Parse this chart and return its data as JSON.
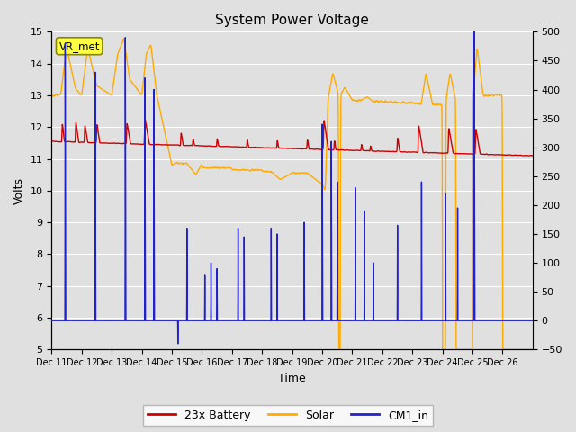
{
  "title": "System Power Voltage",
  "xlabel": "Time",
  "ylabel_left": "Volts",
  "ylim_left": [
    5.0,
    15.0
  ],
  "ylim_right": [
    -50,
    500
  ],
  "yticks_left": [
    5.0,
    6.0,
    7.0,
    8.0,
    9.0,
    10.0,
    11.0,
    12.0,
    13.0,
    14.0,
    15.0
  ],
  "yticks_right": [
    -50,
    0,
    50,
    100,
    150,
    200,
    250,
    300,
    350,
    400,
    450,
    500
  ],
  "xtick_labels": [
    "Dec 11",
    "Dec 12",
    "Dec 13",
    "Dec 14",
    "Dec 15",
    "Dec 16",
    "Dec 17",
    "Dec 18",
    "Dec 19",
    "Dec 20",
    "Dec 21",
    "Dec 22",
    "Dec 23",
    "Dec 24",
    "Dec 25",
    "Dec 26"
  ],
  "bg_color": "#e0e0e0",
  "grid_color": "#ffffff",
  "legend_labels": [
    "23x Battery",
    "Solar",
    "CM1_in"
  ],
  "battery_color": "#cc0000",
  "solar_color": "#ffaa00",
  "cm1_color": "#2222cc",
  "vr_met_bg": "#ffff44",
  "vr_met_border": "#888800"
}
